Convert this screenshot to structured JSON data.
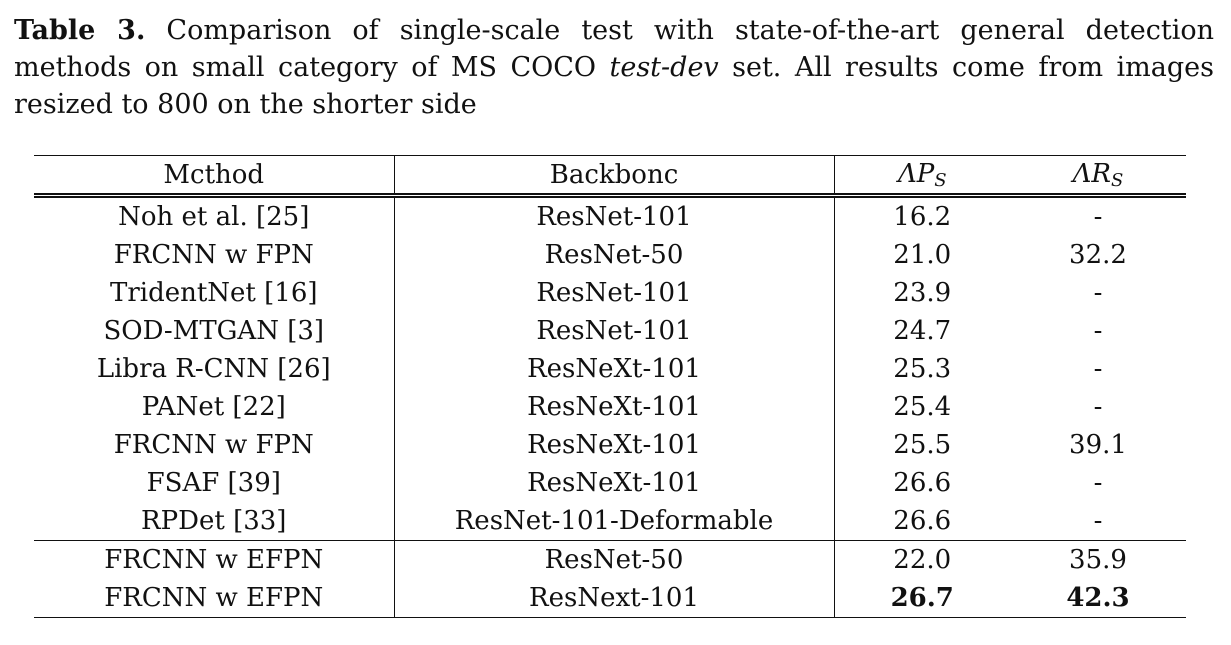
{
  "caption": {
    "label": "Table 3.",
    "text_before": " Comparison of single-scale test with state-of-the-art general detection methods on small category of MS COCO ",
    "italic_term": "test-dev",
    "text_after": " set. All results come from images resized to 800 on the shorter side"
  },
  "table": {
    "headers": {
      "method": "Mcthod",
      "backbone": "Backbonc",
      "ap_main": "ΛP",
      "ap_sub": "S",
      "ar_main": "ΛR",
      "ar_sub": "S"
    },
    "rows": [
      {
        "method": "Noh et al. [25]",
        "backbone": "ResNet-101",
        "ap": "16.2",
        "ar": "-"
      },
      {
        "method": "FRCNN w FPN",
        "backbone": "ResNet-50",
        "ap": "21.0",
        "ar": "32.2"
      },
      {
        "method": "TridentNet [16]",
        "backbone": "ResNet-101",
        "ap": "23.9",
        "ar": "-"
      },
      {
        "method": "SOD-MTGAN [3]",
        "backbone": "ResNet-101",
        "ap": "24.7",
        "ar": "-"
      },
      {
        "method": "Libra R-CNN [26]",
        "backbone": "ResNeXt-101",
        "ap": "25.3",
        "ar": "-"
      },
      {
        "method": "PANet [22]",
        "backbone": "ResNeXt-101",
        "ap": "25.4",
        "ar": "-"
      },
      {
        "method": "FRCNN w FPN",
        "backbone": "ResNeXt-101",
        "ap": "25.5",
        "ar": "39.1"
      },
      {
        "method": "FSAF [39]",
        "backbone": "ResNeXt-101",
        "ap": "26.6",
        "ar": "-"
      },
      {
        "method": "RPDet [33]",
        "backbone": "ResNet-101-Deformable",
        "ap": "26.6",
        "ar": "-"
      },
      {
        "method": "FRCNN w EFPN",
        "backbone": "ResNet-50",
        "ap": "22.0",
        "ar": "35.9"
      },
      {
        "method": "FRCNN w EFPN",
        "backbone": "ResNext-101",
        "ap": "26.7",
        "ar": "42.3"
      }
    ]
  }
}
